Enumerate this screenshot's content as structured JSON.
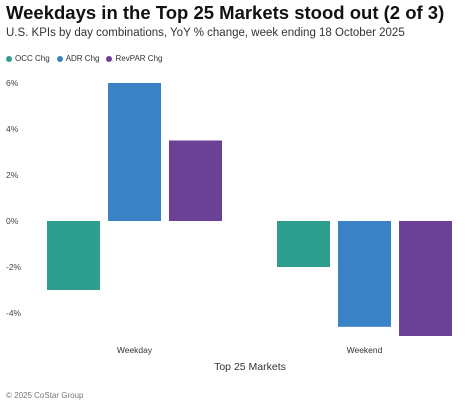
{
  "header": {
    "title": "Weekdays in the Top 25 Markets stood out (2 of 3)",
    "subtitle": "U.S. KPIs by day combinations, YoY % change, week ending 18 October 2025"
  },
  "footer": {
    "copyright": "© 2025 CoStar Group"
  },
  "colors": {
    "occ": "#2e9e8e",
    "adr": "#3a82c6",
    "revpar": "#6a4195"
  },
  "chart_data": {
    "type": "bar",
    "categories": [
      "Weekday",
      "Weekend"
    ],
    "series": [
      {
        "name": "OCC Chg",
        "values": [
          -3.0,
          -2.0
        ]
      },
      {
        "name": "ADR Chg",
        "values": [
          6.0,
          -4.6
        ]
      },
      {
        "name": "RevPAR Chg",
        "values": [
          3.5,
          -5.0
        ]
      }
    ],
    "xlabel": "Top 25 Markets",
    "ylabel": "",
    "ylim": [
      -5,
      6
    ],
    "yticks": [
      6,
      4,
      2,
      0,
      -2,
      -4
    ],
    "ytick_labels": [
      "6%",
      "4%",
      "2%",
      "0%",
      "-2%",
      "-4%"
    ],
    "legend_position": "top-left",
    "grid": false
  }
}
